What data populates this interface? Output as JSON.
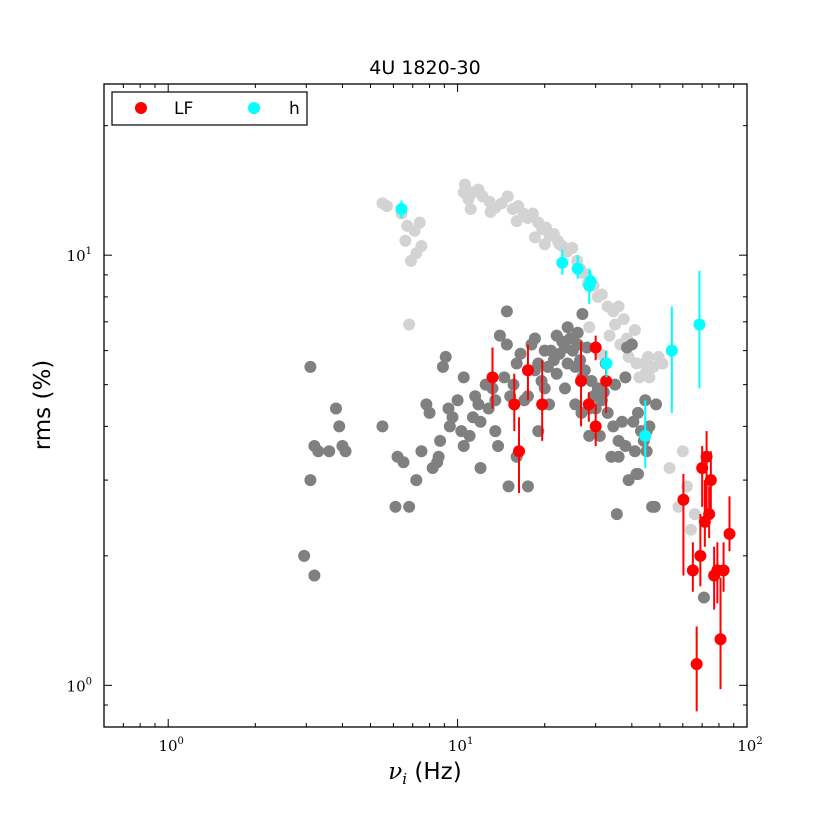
{
  "chart_data": {
    "type": "scatter",
    "title": "4U 1820-30",
    "xlabel": "(Hz)",
    "xlabel_symbol": "ν",
    "xlabel_subscript": "i",
    "ylabel": "rms (%)",
    "xscale": "log",
    "yscale": "log",
    "xlim": [
      0.6,
      100
    ],
    "ylim": [
      0.8,
      25
    ],
    "x_tick_labels": [
      {
        "base": "10",
        "exp": "0",
        "value": 1
      },
      {
        "base": "10",
        "exp": "1",
        "value": 10
      },
      {
        "base": "10",
        "exp": "2",
        "value": 100
      }
    ],
    "y_tick_labels": [
      {
        "base": "10",
        "exp": "0",
        "value": 1
      },
      {
        "base": "10",
        "exp": "1",
        "value": 10
      }
    ],
    "legend": {
      "placement": "top-left",
      "entries": [
        {
          "label": "LF",
          "color": "#ff0000"
        },
        {
          "label": "h",
          "color": "#00ffff"
        }
      ]
    },
    "series": [
      {
        "color": "#d3d3d3",
        "points": [
          [
            5.5,
            13.2
          ],
          [
            5.7,
            13.0
          ],
          [
            6.4,
            12.5
          ],
          [
            6.7,
            11.7
          ],
          [
            7.1,
            11.4
          ],
          [
            7.4,
            11.9
          ],
          [
            6.6,
            10.8
          ],
          [
            7.5,
            10.5
          ],
          [
            7.2,
            10.1
          ],
          [
            6.9,
            9.7
          ],
          [
            10.5,
            14.0
          ],
          [
            10.6,
            14.6
          ],
          [
            10.9,
            13.5
          ],
          [
            11.1,
            12.8
          ],
          [
            11.3,
            14.0
          ],
          [
            11.8,
            14.2
          ],
          [
            12.2,
            13.7
          ],
          [
            12.9,
            13.3
          ],
          [
            13.5,
            12.9
          ],
          [
            14.2,
            13.2
          ],
          [
            14.9,
            13.7
          ],
          [
            15.5,
            12.8
          ],
          [
            16.2,
            13.0
          ],
          [
            16.9,
            12.5
          ],
          [
            17.5,
            12.2
          ],
          [
            18.2,
            12.5
          ],
          [
            19.0,
            11.9
          ],
          [
            19.6,
            11.5
          ],
          [
            20.2,
            11.6
          ],
          [
            20.8,
            11.1
          ],
          [
            21.5,
            11.2
          ],
          [
            22.2,
            10.8
          ],
          [
            23.0,
            10.5
          ],
          [
            23.9,
            10.2
          ],
          [
            24.9,
            10.4
          ],
          [
            25.9,
            9.7
          ],
          [
            27.0,
            9.1
          ],
          [
            28.2,
            8.6
          ],
          [
            29.5,
            8.5
          ],
          [
            30.5,
            8.0
          ],
          [
            31.5,
            8.1
          ],
          [
            33.0,
            7.6
          ],
          [
            34.5,
            7.4
          ],
          [
            36.0,
            7.6
          ],
          [
            18.5,
            11.0
          ],
          [
            20.0,
            10.6
          ],
          [
            16.0,
            12.0
          ],
          [
            13.0,
            12.6
          ],
          [
            22.5,
            10.6
          ],
          [
            26.5,
            9.3
          ],
          [
            35.0,
            6.9
          ],
          [
            37.5,
            7.1
          ],
          [
            38.5,
            6.4
          ],
          [
            41.5,
            5.6
          ],
          [
            44.5,
            5.3
          ],
          [
            45.5,
            5.8
          ],
          [
            47.5,
            5.5
          ],
          [
            51.0,
            5.6
          ],
          [
            39.0,
            5.8
          ],
          [
            42.5,
            5.2
          ],
          [
            36.5,
            6.2
          ],
          [
            41.0,
            6.7
          ],
          [
            44.0,
            5.6
          ],
          [
            46.0,
            5.2
          ],
          [
            49.5,
            5.8
          ],
          [
            31.0,
            5.9
          ],
          [
            54.0,
            3.2
          ],
          [
            60.0,
            3.5
          ],
          [
            62.0,
            2.9
          ],
          [
            58.0,
            2.6
          ],
          [
            64.0,
            2.3
          ],
          [
            66.0,
            2.5
          ],
          [
            6.8,
            6.9
          ],
          [
            28.5,
            6.8
          ],
          [
            33.5,
            6.5
          ]
        ]
      },
      {
        "color": "#808080",
        "points": [
          [
            3.1,
            5.5
          ],
          [
            3.2,
            3.6
          ],
          [
            3.3,
            3.5
          ],
          [
            3.6,
            3.5
          ],
          [
            3.8,
            4.4
          ],
          [
            3.9,
            4.0
          ],
          [
            4.0,
            3.6
          ],
          [
            4.1,
            3.5
          ],
          [
            3.1,
            3.0
          ],
          [
            2.95,
            2.0
          ],
          [
            3.2,
            1.8
          ],
          [
            5.5,
            4.0
          ],
          [
            6.1,
            2.6
          ],
          [
            6.2,
            3.4
          ],
          [
            6.5,
            3.3
          ],
          [
            6.8,
            2.6
          ],
          [
            7.2,
            3.0
          ],
          [
            7.5,
            3.5
          ],
          [
            7.8,
            4.5
          ],
          [
            8.0,
            4.3
          ],
          [
            8.2,
            3.2
          ],
          [
            8.5,
            3.3
          ],
          [
            8.6,
            3.4
          ],
          [
            8.9,
            5.5
          ],
          [
            9.1,
            5.8
          ],
          [
            9.3,
            4.4
          ],
          [
            9.6,
            4.2
          ],
          [
            10.0,
            4.6
          ],
          [
            10.5,
            3.6
          ],
          [
            11.0,
            3.8
          ],
          [
            11.5,
            4.7
          ],
          [
            11.8,
            4.5
          ],
          [
            12.0,
            4.1
          ],
          [
            12.5,
            5.0
          ],
          [
            12.8,
            4.4
          ],
          [
            13.2,
            4.9
          ],
          [
            13.5,
            4.6
          ],
          [
            14.0,
            6.5
          ],
          [
            14.5,
            5.2
          ],
          [
            14.8,
            7.4
          ],
          [
            15.2,
            4.7
          ],
          [
            15.6,
            5.0
          ],
          [
            16.0,
            5.6
          ],
          [
            16.5,
            5.9
          ],
          [
            17.0,
            4.6
          ],
          [
            17.5,
            4.7
          ],
          [
            18.0,
            6.2
          ],
          [
            18.5,
            5.4
          ],
          [
            19.0,
            5.6
          ],
          [
            19.5,
            5.1
          ],
          [
            20.0,
            4.9
          ],
          [
            20.5,
            5.5
          ],
          [
            21.0,
            6.0
          ],
          [
            21.5,
            5.7
          ],
          [
            22.0,
            5.3
          ],
          [
            22.5,
            5.9
          ],
          [
            23.0,
            6.3
          ],
          [
            23.5,
            6.1
          ],
          [
            24.0,
            5.6
          ],
          [
            24.5,
            6.4
          ],
          [
            25.0,
            6.0
          ],
          [
            25.5,
            5.5
          ],
          [
            26.0,
            6.2
          ],
          [
            26.5,
            5.7
          ],
          [
            27.0,
            7.3
          ],
          [
            27.5,
            5.4
          ],
          [
            28.0,
            6.1
          ],
          [
            28.5,
            4.4
          ],
          [
            29.0,
            5.1
          ],
          [
            29.5,
            4.7
          ],
          [
            30.0,
            4.4
          ],
          [
            30.5,
            4.9
          ],
          [
            31.0,
            3.8
          ],
          [
            32.0,
            4.8
          ],
          [
            33.0,
            4.3
          ],
          [
            34.0,
            3.4
          ],
          [
            35.0,
            5.0
          ],
          [
            36.0,
            3.7
          ],
          [
            37.0,
            4.1
          ],
          [
            38.0,
            5.2
          ],
          [
            39.0,
            3.0
          ],
          [
            40.0,
            6.2
          ],
          [
            41.0,
            3.5
          ],
          [
            42.0,
            4.3
          ],
          [
            43.0,
            3.9
          ],
          [
            44.0,
            3.7
          ],
          [
            45.0,
            3.5
          ],
          [
            46.0,
            4.0
          ],
          [
            47.0,
            2.6
          ],
          [
            48.0,
            2.6
          ],
          [
            35.5,
            2.5
          ],
          [
            38.5,
            6.1
          ],
          [
            15.0,
            2.9
          ],
          [
            17.5,
            2.9
          ],
          [
            12.0,
            3.2
          ],
          [
            13.8,
            3.6
          ],
          [
            10.3,
            3.9
          ],
          [
            9.4,
            4.0
          ],
          [
            11.3,
            4.2
          ],
          [
            8.7,
            3.7
          ],
          [
            13.5,
            3.9
          ],
          [
            16.0,
            3.4
          ],
          [
            19.0,
            3.9
          ],
          [
            20.7,
            4.5
          ],
          [
            23.5,
            4.9
          ],
          [
            25.5,
            4.5
          ],
          [
            26.8,
            4.3
          ],
          [
            28.5,
            3.8
          ],
          [
            31.5,
            4.6
          ],
          [
            34.5,
            4.0
          ],
          [
            22.0,
            6.5
          ],
          [
            24.0,
            6.8
          ],
          [
            26.0,
            6.6
          ],
          [
            18.5,
            6.4
          ],
          [
            10.5,
            5.2
          ],
          [
            14.8,
            6.2
          ],
          [
            20.0,
            6.0
          ],
          [
            27.0,
            5.2
          ],
          [
            32.5,
            5.6
          ],
          [
            40.5,
            4.1
          ],
          [
            44.5,
            4.6
          ],
          [
            41.5,
            3.1
          ],
          [
            36.0,
            3.4
          ],
          [
            38.0,
            3.6
          ],
          [
            42.0,
            3.1
          ],
          [
            45.0,
            3.9
          ],
          [
            48.5,
            4.5
          ],
          [
            71.0,
            1.6
          ]
        ]
      },
      {
        "name": "LF",
        "color": "#ff0000",
        "points": [
          {
            "x": 13.2,
            "y": 5.2,
            "yerr": [
              0.8,
              0.9
            ]
          },
          {
            "x": 15.7,
            "y": 4.5,
            "yerr": [
              0.6,
              0.8
            ]
          },
          {
            "x": 16.3,
            "y": 3.5,
            "yerr": [
              0.7,
              0.7
            ]
          },
          {
            "x": 17.5,
            "y": 5.4,
            "yerr": [
              0.8,
              0.8
            ]
          },
          {
            "x": 19.6,
            "y": 4.5,
            "yerr": [
              0.8,
              1.2
            ]
          },
          {
            "x": 26.7,
            "y": 5.1,
            "yerr": [
              1.1,
              1.2
            ]
          },
          {
            "x": 28.4,
            "y": 4.5,
            "yerr": [
              0.4,
              0.3
            ]
          },
          {
            "x": 30.0,
            "y": 4.0,
            "yerr": [
              0.4,
              0.5
            ]
          },
          {
            "x": 30.0,
            "y": 6.1,
            "yerr": [
              0.4,
              0.4
            ]
          },
          {
            "x": 32.6,
            "y": 5.1,
            "yerr": [
              0.8,
              0.9
            ]
          },
          {
            "x": 60.3,
            "y": 2.7,
            "yerr": [
              0.9,
              0.4
            ]
          },
          {
            "x": 65.0,
            "y": 1.85,
            "yerr": [
              0.2,
              0.3
            ]
          },
          {
            "x": 67.0,
            "y": 1.12,
            "yerr": [
              0.25,
              0.25
            ]
          },
          {
            "x": 69.0,
            "y": 2.0,
            "yerr": [
              0.3,
              0.5
            ]
          },
          {
            "x": 70.0,
            "y": 3.2,
            "yerr": [
              0.6,
              0.4
            ]
          },
          {
            "x": 71.5,
            "y": 2.4,
            "yerr": [
              0.3,
              0.6
            ]
          },
          {
            "x": 72.5,
            "y": 3.4,
            "yerr": [
              0.9,
              0.5
            ]
          },
          {
            "x": 74.0,
            "y": 2.5,
            "yerr": [
              0.3,
              0.4
            ]
          },
          {
            "x": 75.0,
            "y": 3.0,
            "yerr": [
              0.5,
              0.5
            ]
          },
          {
            "x": 77.0,
            "y": 1.8,
            "yerr": [
              0.3,
              0.3
            ]
          },
          {
            "x": 79.0,
            "y": 1.85,
            "yerr": [
              0.3,
              0.3
            ]
          },
          {
            "x": 81.0,
            "y": 1.28,
            "yerr": [
              0.3,
              0.5
            ]
          },
          {
            "x": 83.0,
            "y": 1.85,
            "yerr": [
              0.2,
              0.3
            ]
          },
          {
            "x": 87.0,
            "y": 2.25,
            "yerr": [
              0.2,
              0.5
            ]
          }
        ]
      },
      {
        "name": "h",
        "color": "#00ffff",
        "points": [
          {
            "x": 6.4,
            "y": 12.8,
            "yerr": [
              0.6,
              0.6
            ]
          },
          {
            "x": 23.0,
            "y": 9.6,
            "yerr": [
              0.6,
              0.7
            ]
          },
          {
            "x": 26.0,
            "y": 9.3,
            "yerr": [
              0.5,
              0.7
            ]
          },
          {
            "x": 28.5,
            "y": 8.5,
            "yerr": [
              0.8,
              0.8
            ]
          },
          {
            "x": 28.8,
            "y": 8.7,
            "yerr": [
              0.5,
              0.5
            ]
          },
          {
            "x": 32.7,
            "y": 5.6,
            "yerr": [
              0.4,
              0.4
            ]
          },
          {
            "x": 44.5,
            "y": 3.8,
            "yerr": [
              0.6,
              0.8
            ]
          },
          {
            "x": 55.0,
            "y": 6.0,
            "yerr": [
              1.7,
              1.6
            ]
          },
          {
            "x": 68.5,
            "y": 6.9,
            "yerr": [
              2.0,
              2.3
            ]
          }
        ]
      }
    ]
  }
}
